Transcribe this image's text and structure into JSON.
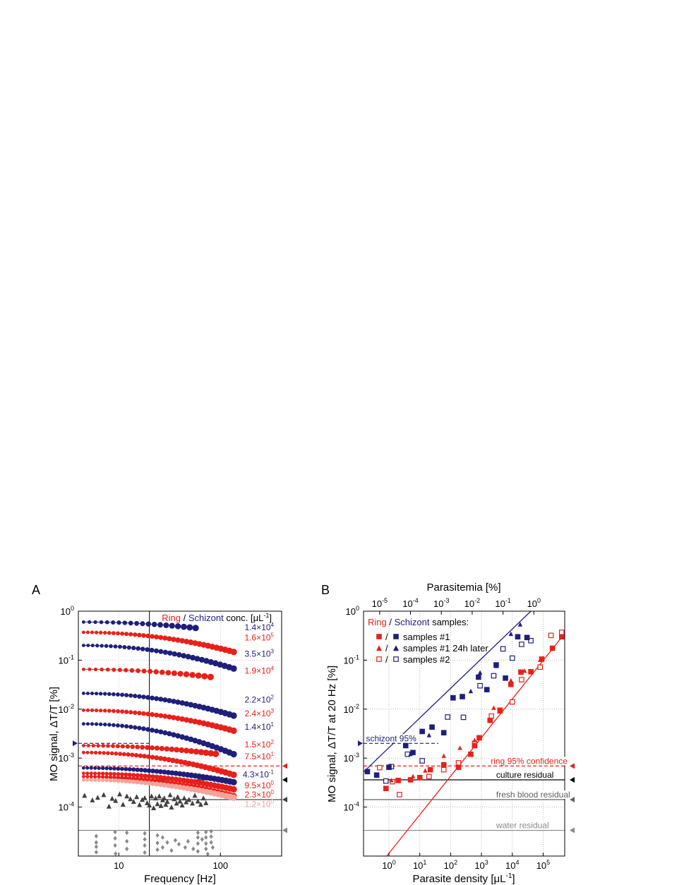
{
  "chart_data": [
    {
      "panel": "A",
      "type": "scatter",
      "xlabel": "Frequency [Hz]",
      "ylabel": "MO signal, ΔT/T [%]",
      "xscale": "log",
      "yscale": "log",
      "xlim": [
        4,
        400
      ],
      "ylim": [
        1e-05,
        1
      ],
      "xticks": [
        {
          "v": 10,
          "label": "10"
        },
        {
          "v": 100,
          "label": "100"
        }
      ],
      "yticks": [
        {
          "v": 1,
          "m": "10",
          "e": "0"
        },
        {
          "v": 0.1,
          "m": "10",
          "e": "-1"
        },
        {
          "v": 0.01,
          "m": "10",
          "e": "-2"
        },
        {
          "v": 0.001,
          "m": "10",
          "e": "-3"
        },
        {
          "v": 0.0001,
          "m": "10",
          "e": "-4"
        }
      ],
      "vline": 20,
      "legend_title": {
        "ring": "Ring",
        "sep": " / ",
        "schizont": "Schizont",
        "rest": " conc. [μL",
        "sup": "-1",
        "close": "]"
      },
      "colors": {
        "schizont": "#1f1f7a",
        "ring": "#e8201a",
        "ring_light": "#f4a39b",
        "dark_grey": "#404040",
        "grey": "#8a8a8a"
      },
      "series": [
        {
          "name": "1.4×10^4",
          "label_m": "1.4×10",
          "label_e": "4",
          "label_y": 0.47,
          "color": "schizont",
          "f0": 4.5,
          "f1": 57,
          "n": 20,
          "a": 0.6,
          "slope": -0.12
        },
        {
          "name": "1.6×10^5",
          "label_m": "1.6×10",
          "label_e": "5",
          "label_y": 0.29,
          "color": "ring",
          "f0": 4.5,
          "f1": 135,
          "n": 36,
          "a": 0.37,
          "slope": -0.22
        },
        {
          "name": "3.5×10^3",
          "label_m": "3.5×10",
          "label_e": "3",
          "label_y": 0.135,
          "color": "schizont",
          "f0": 4.5,
          "f1": 135,
          "n": 34,
          "a": 0.2,
          "slope": -0.26
        },
        {
          "name": "1.9×10^4",
          "label_m": "1.9×10",
          "label_e": "4",
          "label_y": 0.061,
          "color": "ring",
          "f0": 4.5,
          "f1": 80,
          "n": 22,
          "a": 0.065,
          "slope": -0.12
        },
        {
          "name": "2.2×10^2",
          "label_m": "2.2×10",
          "label_e": "2",
          "label_y": 0.0155,
          "color": "schizont",
          "f0": 4.5,
          "f1": 135,
          "n": 36,
          "a": 0.021,
          "slope": -0.25
        },
        {
          "name": "2.4×10^3",
          "label_m": "2.4×10",
          "label_e": "3",
          "label_y": 0.0082,
          "color": "ring",
          "f0": 4.5,
          "f1": 135,
          "n": 36,
          "a": 0.0095,
          "slope": -0.23
        },
        {
          "name": "1.4×10^1",
          "label_m": "1.4×10",
          "label_e": "1",
          "label_y": 0.0043,
          "color": "schizont",
          "f0": 4.5,
          "f1": 135,
          "n": 36,
          "a": 0.005,
          "slope": -0.34
        },
        {
          "name": "1.5×10^2",
          "label_m": "1.5×10",
          "label_e": "2",
          "label_y": 0.0019,
          "color": "ring",
          "f0": 4.5,
          "f1": 90,
          "n": 28,
          "a": 0.0018,
          "slope": -0.12
        },
        {
          "name": "7.5×10^1",
          "label_m": "7.5×10",
          "label_e": "1",
          "label_y": 0.00107,
          "color": "ring",
          "f0": 4.5,
          "f1": 135,
          "n": 38,
          "a": 0.0013,
          "slope": -0.25
        },
        {
          "name": "4.3×10^-1",
          "label_m": "4.3×10",
          "label_e": "-1",
          "label_y": 0.00046,
          "color": "schizont",
          "f0": 4.5,
          "f1": 135,
          "n": 40,
          "a": 0.00063,
          "slope": -0.16
        },
        {
          "name": "9.5×10^0",
          "label_m": "9.5×10",
          "label_e": "0",
          "label_y": 0.000275,
          "color": "ring",
          "f0": 4.5,
          "f1": 135,
          "n": 40,
          "a": 0.00049,
          "slope": -0.18
        },
        {
          "name": "2.3×10^0",
          "label_m": "2.3×10",
          "label_e": "0",
          "label_y": 0.00018,
          "color": "ring",
          "f0": 4.5,
          "f1": 135,
          "n": 40,
          "a": 0.00042,
          "slope": -0.22
        },
        {
          "name": "1.2×10^0",
          "label_m": "1.2×10",
          "label_e": "0",
          "label_y": 0.000115,
          "color": "ring_light",
          "f0": 4.5,
          "f1": 135,
          "n": 40,
          "a": 0.00036,
          "slope": -0.2
        }
      ],
      "triangles": [
        [
          4.6,
          0.00017
        ],
        [
          5.5,
          0.000137
        ],
        [
          6.2,
          0.000155
        ],
        [
          7.1,
          0.000176
        ],
        [
          8.0,
          0.000102
        ],
        [
          8.6,
          0.000148
        ],
        [
          9.3,
          0.000134
        ],
        [
          10.2,
          0.000182
        ],
        [
          11,
          0.000112
        ],
        [
          12,
          0.000165
        ],
        [
          13,
          0.000145
        ],
        [
          14,
          0.000128
        ],
        [
          15,
          0.00016
        ],
        [
          16,
          0.00011
        ],
        [
          17,
          0.00014
        ],
        [
          18,
          0.000152
        ],
        [
          19,
          0.00012
        ],
        [
          20,
          0.000108
        ],
        [
          21,
          0.000165
        ],
        [
          22,
          9.5e-05
        ],
        [
          23,
          0.00015
        ],
        [
          24,
          0.000115
        ],
        [
          25,
          0.000165
        ],
        [
          26,
          0.000105
        ],
        [
          27,
          0.000138
        ],
        [
          28,
          0.00015
        ],
        [
          29,
          0.000112
        ],
        [
          30,
          0.000128
        ],
        [
          32,
          0.000175
        ],
        [
          33,
          9.8e-05
        ],
        [
          35,
          0.000145
        ],
        [
          37,
          0.000118
        ],
        [
          38,
          0.00016
        ],
        [
          40,
          0.00013
        ],
        [
          42,
          0.000108
        ],
        [
          44,
          0.00015
        ],
        [
          46,
          0.000125
        ],
        [
          49,
          0.00014
        ],
        [
          53,
          0.000118
        ],
        [
          56,
          0.00017
        ],
        [
          60,
          0.00013
        ],
        [
          64,
          0.000112
        ],
        [
          68,
          0.00015
        ],
        [
          72,
          0.00012
        ]
      ],
      "diamonds": [
        [
          6,
          2.55e-05
        ],
        [
          6,
          1.9e-05
        ],
        [
          6,
          1.55e-05
        ],
        [
          6,
          1.2e-05
        ],
        [
          9.2,
          3.1e-05
        ],
        [
          9.2,
          2.3e-05
        ],
        [
          9.2,
          1.65e-05
        ],
        [
          9.3,
          1.12e-05
        ],
        [
          12,
          3e-05
        ],
        [
          12,
          2e-05
        ],
        [
          12,
          1.4e-05
        ],
        [
          18,
          2.9e-05
        ],
        [
          18,
          2.2e-05
        ],
        [
          18,
          1.65e-05
        ],
        [
          18,
          1.18e-05
        ],
        [
          24,
          2.65e-05
        ],
        [
          24,
          1.85e-05
        ],
        [
          24,
          1.35e-05
        ],
        [
          27,
          2.4e-05
        ],
        [
          27,
          1.5e-05
        ],
        [
          30,
          1.9e-05
        ],
        [
          33,
          1.3e-05
        ],
        [
          36,
          2.1e-05
        ],
        [
          39,
          1.75e-05
        ],
        [
          45,
          1.5e-05
        ],
        [
          48,
          2e-05
        ],
        [
          54,
          1.4e-05
        ],
        [
          60,
          3e-05
        ],
        [
          60,
          2.4e-05
        ],
        [
          60,
          1.8e-05
        ],
        [
          60,
          1.25e-05
        ],
        [
          66,
          2.2e-05
        ],
        [
          72,
          3.1e-05
        ],
        [
          72,
          2.4e-05
        ],
        [
          72,
          1.8e-05
        ],
        [
          72,
          1.4e-05
        ],
        [
          75,
          1.1e-05
        ],
        [
          81,
          3.2e-05
        ],
        [
          81,
          2.5e-05
        ],
        [
          81,
          1.9e-05
        ],
        [
          84,
          1.5e-05
        ]
      ],
      "hlines": [
        {
          "y": 0.002,
          "color": "schizont",
          "dashed": true,
          "x_end": 20,
          "arrow": "left"
        },
        {
          "y": 0.00069,
          "color": "ring",
          "dashed": true,
          "x_end": 400,
          "arrow": "right"
        },
        {
          "y": 0.00036,
          "color": "#000000",
          "dashed": false,
          "x_start": 20,
          "x_end": 130,
          "arrow": "right"
        },
        {
          "y": 0.000142,
          "color": "#404040",
          "dashed": false,
          "x_start": 20,
          "x_end": 400,
          "arrow": "right"
        },
        {
          "y": 3.35e-05,
          "color": "#808080",
          "dashed": false,
          "x_start": 4,
          "x_end": 400,
          "arrow": "right"
        }
      ]
    },
    {
      "panel": "B",
      "type": "scatter",
      "xlabel": "Parasite density [μL",
      "xlabel_sup": "-1",
      "xlabel_close": "]",
      "ylabel": "MO signal, ΔT/T at 20 Hz [%]",
      "top_xlabel": "Parasitemia [%]",
      "xscale": "log",
      "yscale": "log",
      "xlim": [
        0.15,
        500000
      ],
      "ylim": [
        1e-05,
        1
      ],
      "xticks": [
        {
          "v": 1,
          "m": "10",
          "e": "0"
        },
        {
          "v": 10,
          "m": "10",
          "e": "1"
        },
        {
          "v": 100,
          "m": "10",
          "e": "2"
        },
        {
          "v": 1000,
          "m": "10",
          "e": "3"
        },
        {
          "v": 10000,
          "m": "10",
          "e": "4"
        },
        {
          "v": 100000,
          "m": "10",
          "e": "5"
        }
      ],
      "top_xticks": [
        {
          "v": 0.5,
          "m": "10",
          "e": "-5"
        },
        {
          "v": 5,
          "m": "10",
          "e": "-4"
        },
        {
          "v": 50,
          "m": "10",
          "e": "-3"
        },
        {
          "v": 500,
          "m": "10",
          "e": "-2"
        },
        {
          "v": 5000,
          "m": "10",
          "e": "-1"
        },
        {
          "v": 50000,
          "m": "10",
          "e": "0"
        }
      ],
      "yticks": [
        {
          "v": 1,
          "m": "10",
          "e": "0"
        },
        {
          "v": 0.1,
          "m": "10",
          "e": "-1"
        },
        {
          "v": 0.01,
          "m": "10",
          "e": "-2"
        },
        {
          "v": 0.001,
          "m": "10",
          "e": "-3"
        },
        {
          "v": 0.0001,
          "m": "10",
          "e": "-4"
        }
      ],
      "legend": {
        "title_ring": "Ring",
        "title_sep": " / ",
        "title_schizont": "Schizont",
        "title_rest": " samples:",
        "slash": "/",
        "items": [
          "samples #1",
          "samples #1 24h later",
          "samples #2"
        ]
      },
      "fit_lines": [
        {
          "color": "schizont",
          "x0": 0.15,
          "y0": 0.00052,
          "x1": 40000,
          "y1": 1
        },
        {
          "color": "ring",
          "x0": 0.85,
          "y0": 1e-05,
          "x1": 500000,
          "y1": 0.35
        }
      ],
      "ring_samples1": [
        [
          0.8,
          0.00024
        ],
        [
          2,
          0.00035
        ],
        [
          5,
          0.00036
        ],
        [
          10,
          0.0004
        ],
        [
          22,
          0.00058
        ],
        [
          60,
          0.00073
        ],
        [
          180,
          0.00065
        ],
        [
          450,
          0.0012
        ],
        [
          600,
          0.0018
        ],
        [
          850,
          0.0026
        ],
        [
          1900,
          0.0059
        ],
        [
          4000,
          0.0095
        ],
        [
          9000,
          0.032
        ],
        [
          19000,
          0.057
        ],
        [
          40000,
          0.058
        ],
        [
          90000,
          0.105
        ],
        [
          200000,
          0.175
        ],
        [
          400000,
          0.3
        ]
      ],
      "ring_samples1_24h": [
        [
          1.2,
          0.00035
        ],
        [
          6,
          0.00042
        ],
        [
          15,
          0.00055
        ],
        [
          60,
          0.0011
        ],
        [
          200,
          0.0016
        ],
        [
          600,
          0.0023
        ],
        [
          2500,
          0.0105
        ],
        [
          9000,
          0.038
        ],
        [
          25000,
          0.06
        ],
        [
          80000,
          0.1
        ]
      ],
      "ring_samples2": [
        [
          0.5,
          0.00064
        ],
        [
          1.3,
          0.00033
        ],
        [
          2.2,
          0.00018
        ],
        [
          20,
          0.00042
        ],
        [
          60,
          0.00058
        ],
        [
          180,
          0.0008
        ],
        [
          600,
          0.002
        ],
        [
          2100,
          0.0072
        ],
        [
          4000,
          0.0092
        ],
        [
          10000,
          0.014
        ],
        [
          20000,
          0.04
        ],
        [
          80000,
          0.072
        ],
        [
          180000,
          0.32
        ],
        [
          400000,
          0.37
        ]
      ],
      "schizont_samples1": [
        [
          0.2,
          0.00053
        ],
        [
          0.4,
          0.00045
        ],
        [
          1,
          0.00065
        ],
        [
          3.5,
          0.0018
        ],
        [
          6,
          0.0013
        ],
        [
          12,
          0.0035
        ],
        [
          25,
          0.0043
        ],
        [
          60,
          0.0033
        ],
        [
          120,
          0.017
        ],
        [
          240,
          0.018
        ],
        [
          800,
          0.045
        ],
        [
          1500,
          0.025
        ],
        [
          3000,
          0.08
        ],
        [
          6000,
          0.043
        ],
        [
          15000,
          0.3
        ],
        [
          30000,
          0.29
        ]
      ],
      "schizont_samples1_24h": [
        [
          5,
          0.0012
        ],
        [
          20,
          0.0029
        ],
        [
          450,
          0.023
        ],
        [
          900,
          0.055
        ],
        [
          3000,
          0.075
        ],
        [
          9000,
          0.34
        ],
        [
          18000,
          0.53
        ]
      ],
      "schizont_samples2": [
        [
          0.8,
          0.00034
        ],
        [
          1.2,
          0.00067
        ],
        [
          4,
          0.0012
        ],
        [
          12,
          0.00088
        ],
        [
          80,
          0.0069
        ],
        [
          260,
          0.0068
        ],
        [
          900,
          0.03
        ],
        [
          2500,
          0.048
        ],
        [
          5000,
          0.17
        ],
        [
          10000,
          0.11
        ],
        [
          20000,
          0.21
        ],
        [
          40000,
          0.25
        ]
      ],
      "hlines": [
        {
          "label": "schizont 95%",
          "y": 0.002,
          "color": "schizont",
          "dashed": true,
          "x_start": 0.15,
          "x_end": 40,
          "label_x": 0.18,
          "arrow": "left"
        },
        {
          "label": "ring 95% confidence",
          "y": 0.00069,
          "color": "ring",
          "dashed": true,
          "x_start": 0.15,
          "x_end": 500000,
          "label_x": 2000,
          "arrow": "right"
        },
        {
          "label": "culture residual",
          "y": 0.00036,
          "color": "#000000",
          "dashed": false,
          "x_start": 0.15,
          "x_end": 500000,
          "label_x": 3000,
          "arrow": "right"
        },
        {
          "label": "fresh blood residual",
          "y": 0.000142,
          "color": "#606060",
          "dashed": false,
          "x_start": 0.15,
          "x_end": 500000,
          "label_x": 3000,
          "arrow": "right"
        },
        {
          "label": "water residual",
          "y": 3.35e-05,
          "color": "#8a8a8a",
          "dashed": false,
          "x_start": 0.15,
          "x_end": 500000,
          "label_x": 3000,
          "arrow": "right"
        }
      ]
    }
  ]
}
